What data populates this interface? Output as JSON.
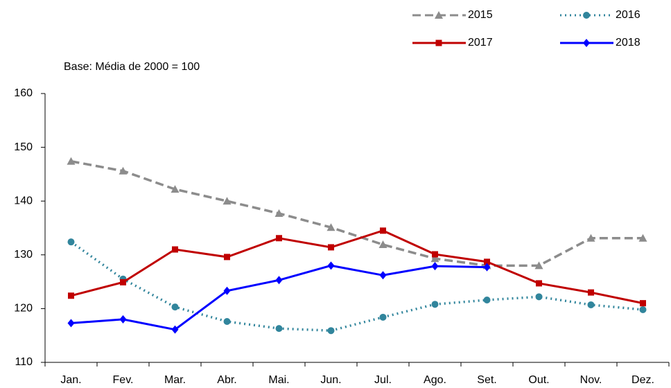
{
  "chart_data": {
    "type": "line",
    "subtitle": "Base: Média de 2000 = 100",
    "categories": [
      "Jan.",
      "Fev.",
      "Mar.",
      "Abr.",
      "Mai.",
      "Jun.",
      "Jul.",
      "Ago.",
      "Set.",
      "Out.",
      "Nov.",
      "Dez."
    ],
    "series": [
      {
        "name": "2015",
        "color": "#8c8c8c",
        "dash": "dashed",
        "marker": "triangle",
        "values": [
          147.4,
          145.6,
          142.2,
          140.0,
          137.7,
          135.1,
          131.9,
          129.3,
          128.0,
          128.0,
          133.1,
          133.1
        ]
      },
      {
        "name": "2016",
        "color": "#31859c",
        "dash": "dotted",
        "marker": "circle",
        "values": [
          132.4,
          125.5,
          120.3,
          117.6,
          116.3,
          115.9,
          118.4,
          120.8,
          121.6,
          122.2,
          120.7,
          119.8
        ]
      },
      {
        "name": "2017",
        "color": "#c00000",
        "dash": "solid",
        "marker": "square",
        "values": [
          122.4,
          124.9,
          131.0,
          129.6,
          133.1,
          131.4,
          134.5,
          130.1,
          128.7,
          124.7,
          123.0,
          121.0
        ]
      },
      {
        "name": "2018",
        "color": "#0000ff",
        "dash": "solid",
        "marker": "diamond",
        "values": [
          117.3,
          118.0,
          116.1,
          123.3,
          125.3,
          128.0,
          126.2,
          127.9,
          127.7,
          null,
          null,
          null
        ]
      }
    ],
    "ylim": [
      110,
      160
    ],
    "yticks": [
      110,
      120,
      130,
      140,
      150,
      160
    ],
    "grid": false
  }
}
